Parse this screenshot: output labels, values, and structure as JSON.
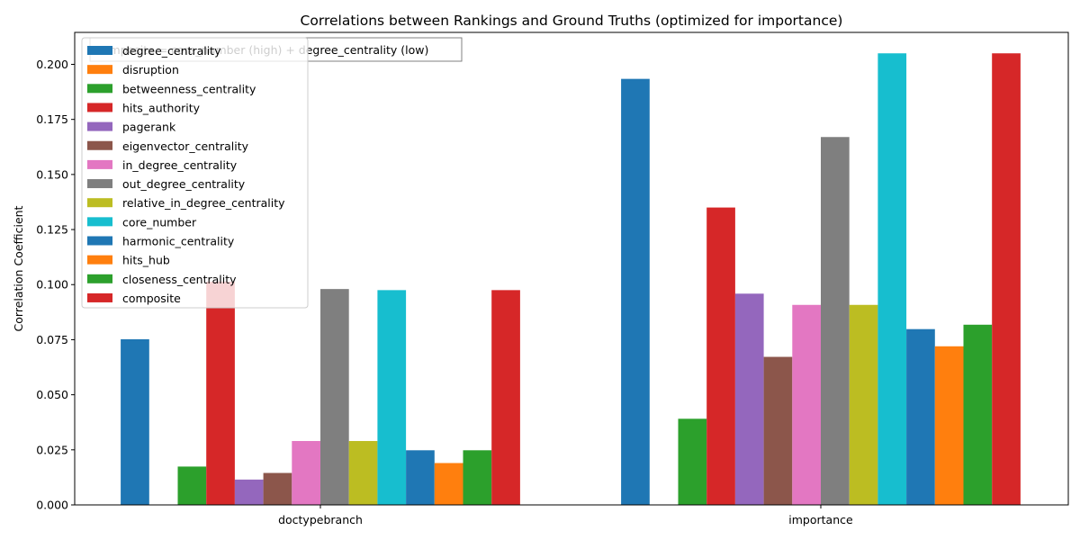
{
  "chart_data": {
    "type": "bar",
    "title": "Correlations between Rankings and Ground Truths (optimized for importance)",
    "xlabel": "",
    "ylabel": "Correlation Coefficient",
    "categories": [
      "doctypebranch",
      "importance"
    ],
    "ylim": [
      0,
      0.2145
    ],
    "yticks": [
      0.0,
      0.025,
      0.05,
      0.075,
      0.1,
      0.125,
      0.15,
      0.175,
      0.2
    ],
    "ytick_labels": [
      "0.000",
      "0.025",
      "0.050",
      "0.075",
      "0.100",
      "0.125",
      "0.150",
      "0.175",
      "0.200"
    ],
    "grid": false,
    "legend_position": "upper-left",
    "annotation": "composite = core_number (high) + degree_centrality (low)",
    "series": [
      {
        "name": "degree_centrality",
        "color": "#1f77b4",
        "values": [
          0.0752,
          0.1934
        ]
      },
      {
        "name": "disruption",
        "color": "#ff7f0e",
        "values": [
          0.0,
          0.0
        ]
      },
      {
        "name": "betweenness_centrality",
        "color": "#2ca02c",
        "values": [
          0.0174,
          0.0391
        ]
      },
      {
        "name": "hits_authority",
        "color": "#d62728",
        "values": [
          0.1014,
          0.135
        ]
      },
      {
        "name": "pagerank",
        "color": "#9467bd",
        "values": [
          0.0115,
          0.0959
        ]
      },
      {
        "name": "eigenvector_centrality",
        "color": "#8c564b",
        "values": [
          0.0145,
          0.0672
        ]
      },
      {
        "name": "in_degree_centrality",
        "color": "#e377c2",
        "values": [
          0.029,
          0.0908
        ]
      },
      {
        "name": "out_degree_centrality",
        "color": "#7f7f7f",
        "values": [
          0.098,
          0.167
        ]
      },
      {
        "name": "relative_in_degree_centrality",
        "color": "#bcbd22",
        "values": [
          0.029,
          0.0908
        ]
      },
      {
        "name": "core_number",
        "color": "#17becf",
        "values": [
          0.0975,
          0.205
        ]
      },
      {
        "name": "harmonic_centrality",
        "color": "#1f77b4",
        "values": [
          0.0248,
          0.0798
        ]
      },
      {
        "name": "hits_hub",
        "color": "#ff7f0e",
        "values": [
          0.019,
          0.072
        ]
      },
      {
        "name": "closeness_centrality",
        "color": "#2ca02c",
        "values": [
          0.0248,
          0.0818
        ]
      },
      {
        "name": "composite",
        "color": "#d62728",
        "values": [
          0.0975,
          0.205
        ]
      }
    ]
  }
}
